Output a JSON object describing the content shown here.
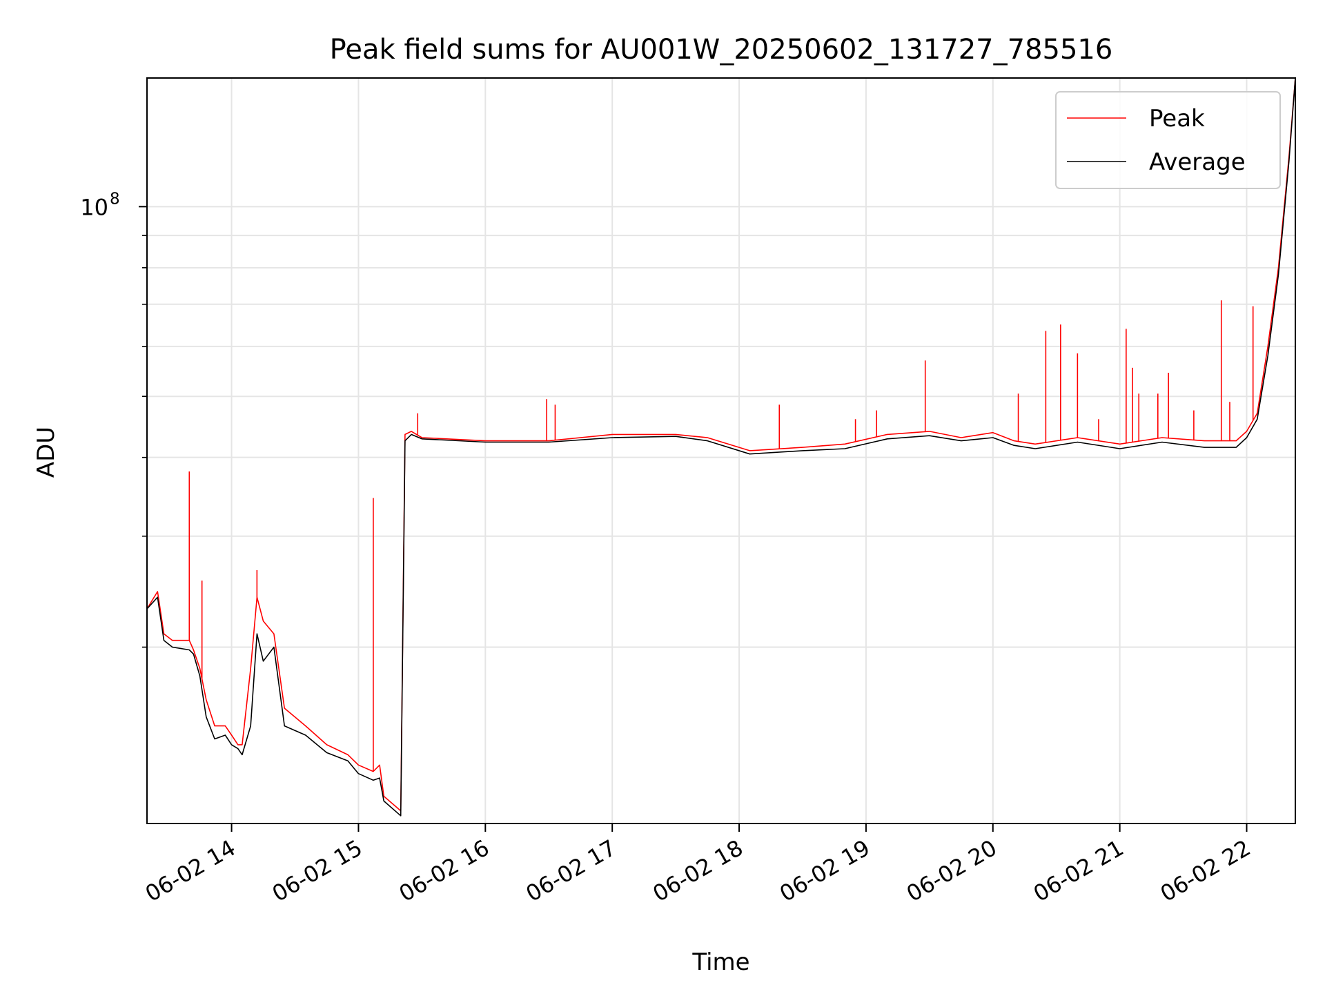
{
  "chart_data": {
    "type": "line",
    "title": "Peak field sums for AU001W_20250602_131727_785516",
    "xlabel": "Time",
    "ylabel": "ADU",
    "y_scale": "log",
    "grid": true,
    "grid_minor_y": true,
    "legend_position": "top-right",
    "x_ticks": [
      "06-02 14",
      "06-02 15",
      "06-02 16",
      "06-02 17",
      "06-02 18",
      "06-02 19",
      "06-02 20",
      "06-02 21",
      "06-02 22"
    ],
    "x_tick_dates": [
      "2025-06-02T14:00",
      "2025-06-02T15:00",
      "2025-06-02T16:00",
      "2025-06-02T17:00",
      "2025-06-02T18:00",
      "2025-06-02T19:00",
      "2025-06-02T20:00",
      "2025-06-02T21:00",
      "2025-06-02T22:00"
    ],
    "xlim": [
      "2025-06-02T13:20",
      "2025-06-02T22:23"
    ],
    "ylim": [
      10500000,
      160000000
    ],
    "y_tick_base": "10",
    "y_tick_exponent": "8",
    "series": [
      {
        "name": "Peak",
        "color": "#ff0000",
        "x": [
          "2025-06-02T13:20",
          "2025-06-02T13:25",
          "2025-06-02T13:28",
          "2025-06-02T13:32",
          "2025-06-02T13:40",
          "2025-06-02T13:42",
          "2025-06-02T13:45",
          "2025-06-02T13:48",
          "2025-06-02T13:52",
          "2025-06-02T13:57",
          "2025-06-02T14:00",
          "2025-06-02T14:03",
          "2025-06-02T14:05",
          "2025-06-02T14:09",
          "2025-06-02T14:12",
          "2025-06-02T14:15",
          "2025-06-02T14:20",
          "2025-06-02T14:25",
          "2025-06-02T14:35",
          "2025-06-02T14:45",
          "2025-06-02T14:55",
          "2025-06-02T15:00",
          "2025-06-02T15:07",
          "2025-06-02T15:10",
          "2025-06-02T15:12",
          "2025-06-02T15:20",
          "2025-06-02T15:22",
          "2025-06-02T15:25",
          "2025-06-02T15:30",
          "2025-06-02T16:00",
          "2025-06-02T16:30",
          "2025-06-02T17:00",
          "2025-06-02T17:30",
          "2025-06-02T17:45",
          "2025-06-02T18:05",
          "2025-06-02T18:30",
          "2025-06-02T18:50",
          "2025-06-02T19:10",
          "2025-06-02T19:30",
          "2025-06-02T19:45",
          "2025-06-02T20:00",
          "2025-06-02T20:10",
          "2025-06-02T20:20",
          "2025-06-02T20:40",
          "2025-06-02T21:00",
          "2025-06-02T21:20",
          "2025-06-02T21:40",
          "2025-06-02T21:55",
          "2025-06-02T22:00",
          "2025-06-02T22:05",
          "2025-06-02T22:10",
          "2025-06-02T22:15",
          "2025-06-02T22:20",
          "2025-06-02T22:23"
        ],
        "values": [
          23000000,
          24500000,
          21000000,
          20500000,
          20500000,
          19800000,
          18500000,
          16500000,
          15000000,
          15000000,
          14500000,
          14000000,
          14000000,
          18500000,
          24000000,
          22000000,
          21000000,
          16000000,
          15000000,
          14000000,
          13500000,
          13000000,
          12700000,
          13000000,
          11600000,
          11000000,
          43500000,
          44000000,
          43000000,
          42500000,
          42500000,
          43500000,
          43500000,
          43000000,
          41000000,
          41500000,
          42000000,
          43500000,
          44000000,
          43000000,
          43800000,
          42500000,
          42000000,
          43000000,
          42000000,
          43000000,
          42500000,
          42500000,
          44000000,
          47000000,
          60000000,
          80000000,
          120000000,
          160000000
        ],
        "spikes": [
          {
            "x": "2025-06-02T13:40",
            "y": 38000000
          },
          {
            "x": "2025-06-02T13:46",
            "y": 25500000
          },
          {
            "x": "2025-06-02T14:12",
            "y": 26500000
          },
          {
            "x": "2025-06-02T15:07",
            "y": 34500000
          },
          {
            "x": "2025-06-02T15:28",
            "y": 47000000
          },
          {
            "x": "2025-06-02T16:29",
            "y": 49500000
          },
          {
            "x": "2025-06-02T16:33",
            "y": 48500000
          },
          {
            "x": "2025-06-02T18:19",
            "y": 48500000
          },
          {
            "x": "2025-06-02T18:55",
            "y": 46000000
          },
          {
            "x": "2025-06-02T19:05",
            "y": 47500000
          },
          {
            "x": "2025-06-02T19:28",
            "y": 57000000
          },
          {
            "x": "2025-06-02T20:12",
            "y": 50500000
          },
          {
            "x": "2025-06-02T20:25",
            "y": 63500000
          },
          {
            "x": "2025-06-02T20:32",
            "y": 65000000
          },
          {
            "x": "2025-06-02T20:40",
            "y": 58500000
          },
          {
            "x": "2025-06-02T20:50",
            "y": 46000000
          },
          {
            "x": "2025-06-02T21:03",
            "y": 64000000
          },
          {
            "x": "2025-06-02T21:06",
            "y": 55500000
          },
          {
            "x": "2025-06-02T21:09",
            "y": 50500000
          },
          {
            "x": "2025-06-02T21:18",
            "y": 50500000
          },
          {
            "x": "2025-06-02T21:23",
            "y": 54500000
          },
          {
            "x": "2025-06-02T21:35",
            "y": 47500000
          },
          {
            "x": "2025-06-02T21:48",
            "y": 71000000
          },
          {
            "x": "2025-06-02T21:52",
            "y": 49000000
          },
          {
            "x": "2025-06-02T22:03",
            "y": 69500000
          }
        ]
      },
      {
        "name": "Average",
        "color": "#000000",
        "x": [
          "2025-06-02T13:20",
          "2025-06-02T13:25",
          "2025-06-02T13:28",
          "2025-06-02T13:32",
          "2025-06-02T13:40",
          "2025-06-02T13:42",
          "2025-06-02T13:45",
          "2025-06-02T13:48",
          "2025-06-02T13:52",
          "2025-06-02T13:57",
          "2025-06-02T14:00",
          "2025-06-02T14:03",
          "2025-06-02T14:05",
          "2025-06-02T14:09",
          "2025-06-02T14:12",
          "2025-06-02T14:15",
          "2025-06-02T14:20",
          "2025-06-02T14:25",
          "2025-06-02T14:35",
          "2025-06-02T14:45",
          "2025-06-02T14:55",
          "2025-06-02T15:00",
          "2025-06-02T15:07",
          "2025-06-02T15:10",
          "2025-06-02T15:12",
          "2025-06-02T15:20",
          "2025-06-02T15:22",
          "2025-06-02T15:25",
          "2025-06-02T15:30",
          "2025-06-02T16:00",
          "2025-06-02T16:30",
          "2025-06-02T17:00",
          "2025-06-02T17:30",
          "2025-06-02T17:45",
          "2025-06-02T18:05",
          "2025-06-02T18:30",
          "2025-06-02T18:50",
          "2025-06-02T19:10",
          "2025-06-02T19:30",
          "2025-06-02T19:45",
          "2025-06-02T20:00",
          "2025-06-02T20:10",
          "2025-06-02T20:20",
          "2025-06-02T20:40",
          "2025-06-02T21:00",
          "2025-06-02T21:20",
          "2025-06-02T21:40",
          "2025-06-02T21:55",
          "2025-06-02T22:00",
          "2025-06-02T22:05",
          "2025-06-02T22:10",
          "2025-06-02T22:15",
          "2025-06-02T22:20",
          "2025-06-02T22:23"
        ],
        "values": [
          23000000,
          24000000,
          20500000,
          20000000,
          19800000,
          19500000,
          18000000,
          15500000,
          14300000,
          14500000,
          14000000,
          13800000,
          13500000,
          15000000,
          21000000,
          19000000,
          20000000,
          15000000,
          14500000,
          13600000,
          13200000,
          12600000,
          12300000,
          12400000,
          11400000,
          10800000,
          42500000,
          43500000,
          42800000,
          42300000,
          42300000,
          43000000,
          43200000,
          42500000,
          40500000,
          41000000,
          41300000,
          42800000,
          43300000,
          42500000,
          43000000,
          41800000,
          41300000,
          42300000,
          41300000,
          42300000,
          41500000,
          41500000,
          43000000,
          46000000,
          58000000,
          78000000,
          118000000,
          160000000
        ]
      }
    ]
  }
}
